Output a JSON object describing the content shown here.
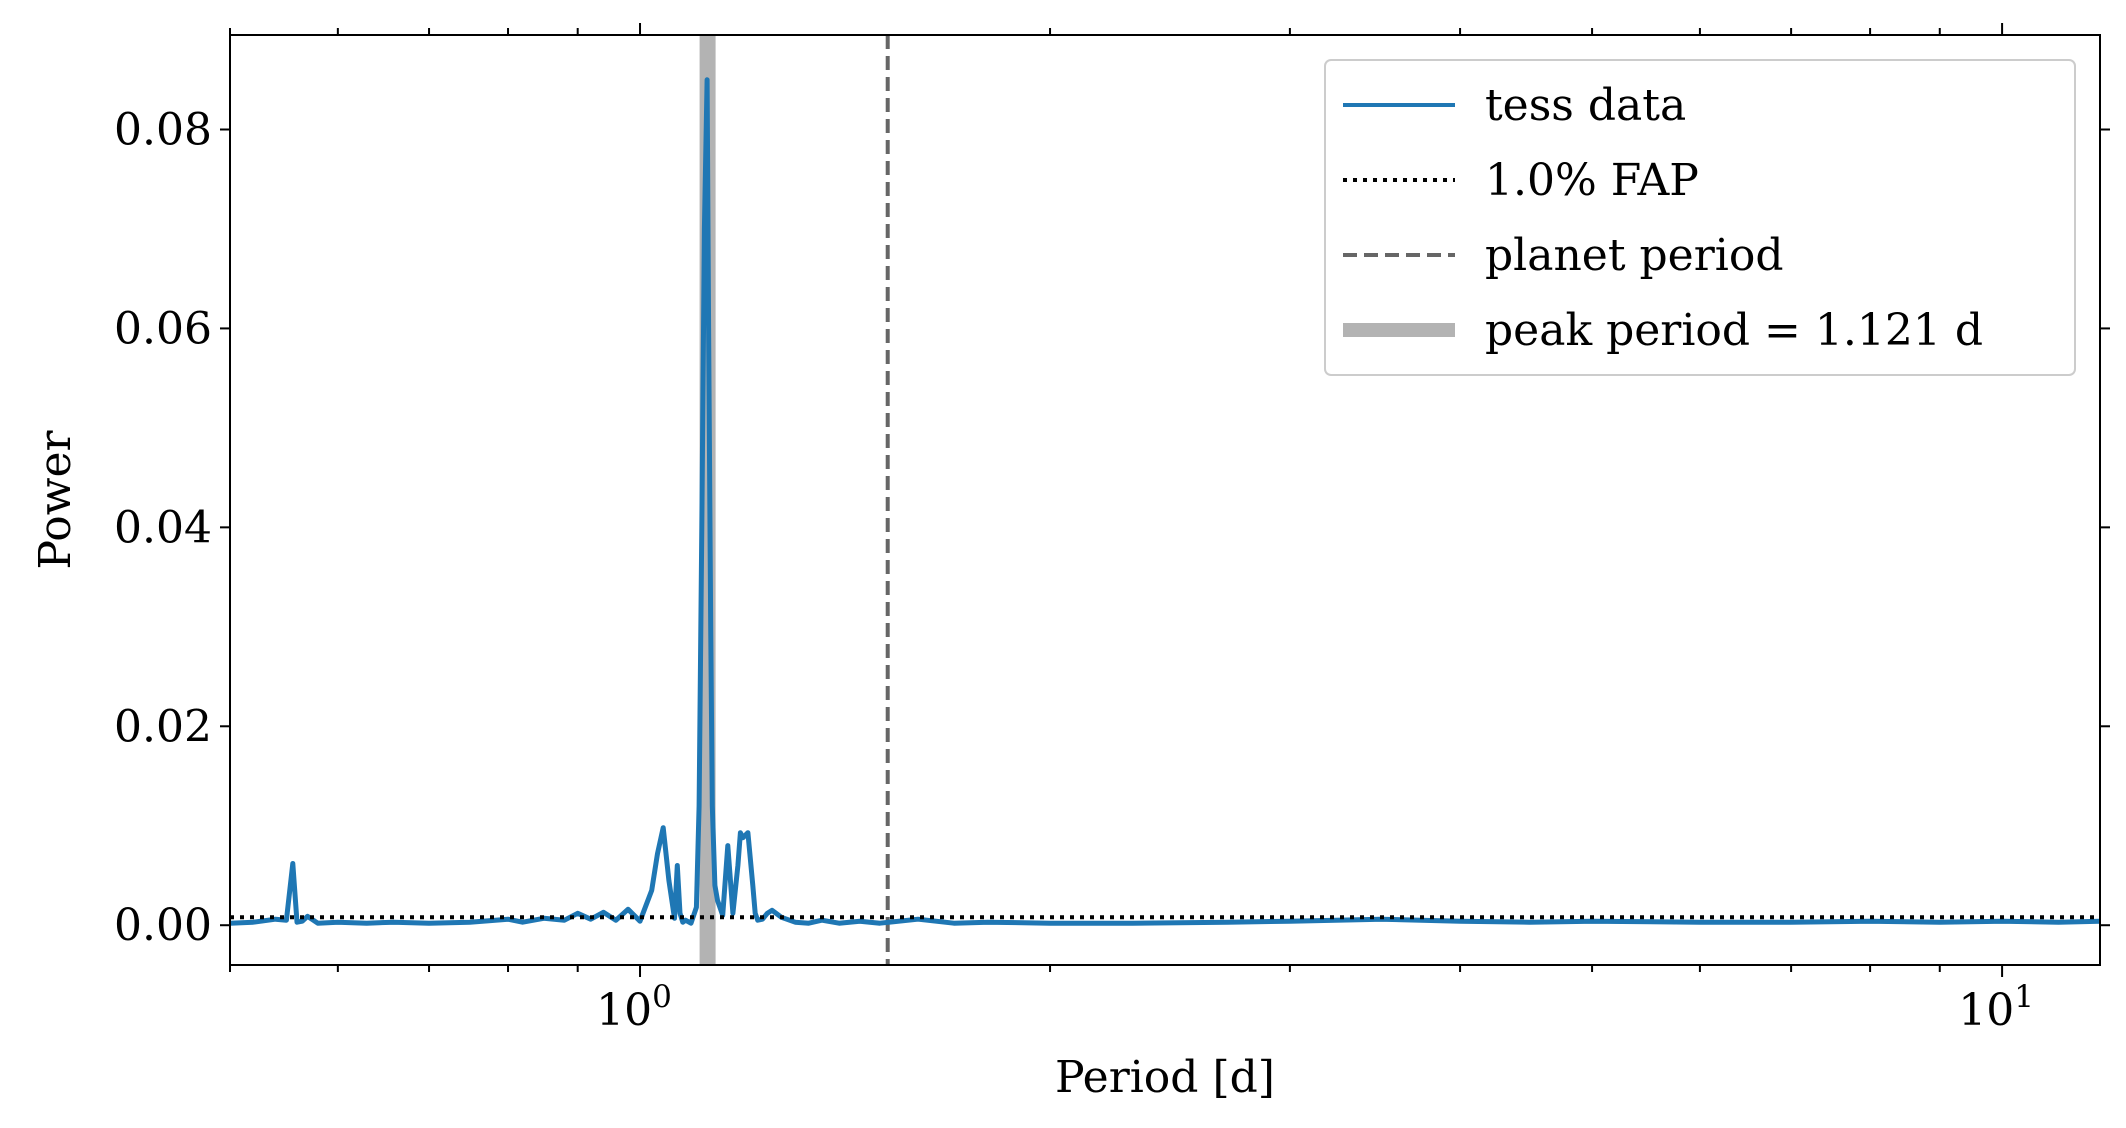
{
  "chart_data": {
    "type": "line",
    "title": "",
    "xlabel": "Period [d]",
    "ylabel": "Power",
    "xscale": "log",
    "xlim": [
      0.5,
      11.8
    ],
    "ylim": [
      -0.004,
      0.0895
    ],
    "yticks": [
      0.0,
      0.02,
      0.04,
      0.06,
      0.08
    ],
    "ytick_labels": [
      "0.00",
      "0.02",
      "0.04",
      "0.06",
      "0.08"
    ],
    "xtick_major_labels": [
      {
        "base": "10",
        "exp": "0",
        "value": 1
      },
      {
        "base": "10",
        "exp": "1",
        "value": 10
      }
    ],
    "legend_position": "top-right",
    "colors": {
      "data": "#1f77b4",
      "fap": "#000000",
      "planet": "#666666",
      "peak": "#b3b3b3"
    },
    "series": [
      {
        "name": "tess data",
        "style": "solid",
        "x": [
          0.5,
          0.52,
          0.54,
          0.55,
          0.556,
          0.56,
          0.565,
          0.57,
          0.58,
          0.6,
          0.63,
          0.66,
          0.7,
          0.75,
          0.8,
          0.82,
          0.85,
          0.88,
          0.9,
          0.92,
          0.94,
          0.96,
          0.98,
          1.0,
          1.02,
          1.03,
          1.04,
          1.05,
          1.06,
          1.065,
          1.07,
          1.075,
          1.08,
          1.09,
          1.1,
          1.105,
          1.11,
          1.115,
          1.12,
          1.123,
          1.127,
          1.13,
          1.135,
          1.14,
          1.15,
          1.16,
          1.17,
          1.18,
          1.185,
          1.19,
          1.2,
          1.21,
          1.215,
          1.22,
          1.23,
          1.24,
          1.25,
          1.27,
          1.3,
          1.33,
          1.36,
          1.4,
          1.45,
          1.5,
          1.6,
          1.7,
          1.8,
          2.0,
          2.3,
          2.7,
          3.0,
          3.5,
          4.0,
          4.5,
          5.0,
          6.0,
          7.0,
          8.0,
          9.0,
          10.0,
          11.0,
          11.8
        ],
        "y": [
          0.0002,
          0.0003,
          0.0006,
          0.0005,
          0.0062,
          0.0003,
          0.0004,
          0.0009,
          0.0002,
          0.0003,
          0.0002,
          0.0003,
          0.0002,
          0.0003,
          0.0006,
          0.0003,
          0.0007,
          0.0005,
          0.0012,
          0.0006,
          0.0013,
          0.0005,
          0.0016,
          0.0004,
          0.0035,
          0.0072,
          0.0098,
          0.0045,
          0.0007,
          0.006,
          0.0012,
          0.0003,
          0.0005,
          0.0002,
          0.0018,
          0.012,
          0.04,
          0.07,
          0.085,
          0.06,
          0.03,
          0.012,
          0.004,
          0.0025,
          0.001,
          0.008,
          0.0012,
          0.006,
          0.0093,
          0.0088,
          0.0093,
          0.004,
          0.0012,
          0.0005,
          0.0006,
          0.0012,
          0.0015,
          0.0008,
          0.0003,
          0.0002,
          0.0005,
          0.0002,
          0.0004,
          0.0002,
          0.0006,
          0.0002,
          0.0003,
          0.0002,
          0.0002,
          0.0003,
          0.0004,
          0.0006,
          0.0004,
          0.0003,
          0.0004,
          0.0003,
          0.0003,
          0.0004,
          0.0003,
          0.0004,
          0.0003,
          0.0004
        ]
      },
      {
        "name": "1.0% FAP",
        "style": "dotted",
        "y": 0.0008
      },
      {
        "name": "planet period",
        "style": "dashed",
        "x": 1.52
      },
      {
        "name": "peak period = 1.121 d",
        "style": "thick-solid",
        "x": 1.121
      }
    ]
  }
}
